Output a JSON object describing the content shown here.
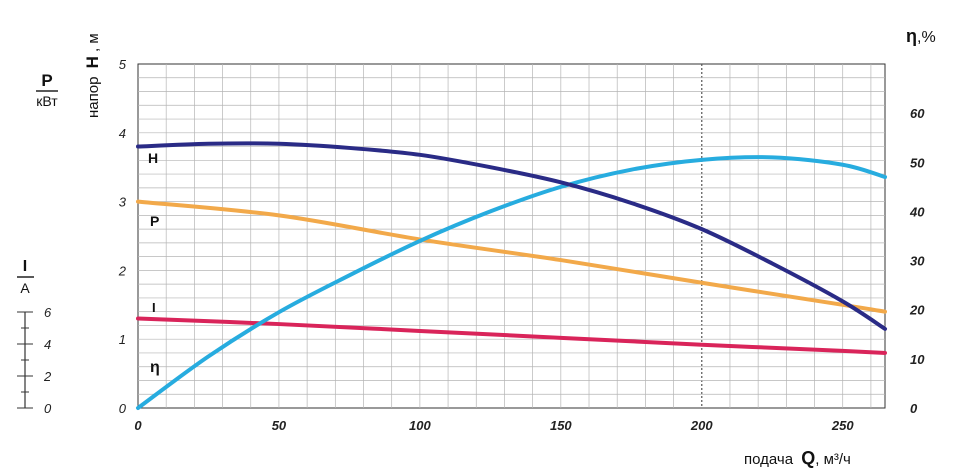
{
  "chart_data": {
    "type": "line",
    "title": "",
    "x_axis": {
      "label_prefix": "подача",
      "label_symbol": "Q",
      "label_unit": ", м³/ч",
      "range": [
        0,
        265
      ],
      "ticks": [
        "0",
        "50",
        "100",
        "150",
        "200",
        "250"
      ],
      "grid": true
    },
    "left_axis": {
      "label_prefix": "напор",
      "label_symbol": "Н",
      "label_unit": ", м",
      "range": [
        0,
        5
      ],
      "ticks": [
        "0",
        "1",
        "2",
        "3",
        "4",
        "5"
      ]
    },
    "power_axis": {
      "symbol": "P",
      "unit": "кВт"
    },
    "current_axis": {
      "symbol": "I",
      "unit": "A",
      "ticks": [
        "0",
        "2",
        "4",
        "6"
      ]
    },
    "eff_axis": {
      "symbol": "η",
      "unit": ",%",
      "range": [
        0,
        70
      ],
      "ticks": [
        "0",
        "10",
        "20",
        "30",
        "40",
        "50",
        "60"
      ]
    },
    "series": [
      {
        "name": "Н",
        "color": "#2a2b86",
        "axis": "left",
        "x": [
          0,
          25,
          50,
          75,
          100,
          125,
          150,
          175,
          200,
          225,
          250,
          265
        ],
        "y": [
          3.8,
          3.84,
          3.84,
          3.78,
          3.68,
          3.5,
          3.28,
          2.98,
          2.6,
          2.1,
          1.55,
          1.15
        ]
      },
      {
        "name": "P",
        "color": "#f2a94a",
        "axis": "left",
        "x": [
          0,
          50,
          100,
          150,
          200,
          250,
          265
        ],
        "y": [
          3.0,
          2.8,
          2.45,
          2.15,
          1.82,
          1.5,
          1.4
        ]
      },
      {
        "name": "I",
        "color": "#d9245a",
        "axis": "left",
        "x": [
          0,
          50,
          100,
          150,
          200,
          250,
          265
        ],
        "y": [
          1.3,
          1.22,
          1.12,
          1.02,
          0.92,
          0.83,
          0.8
        ]
      },
      {
        "name": "η",
        "color": "#27acdf",
        "axis": "eff",
        "x": [
          0,
          25,
          50,
          75,
          100,
          125,
          150,
          175,
          200,
          225,
          250,
          265
        ],
        "y": [
          0,
          10.5,
          19.5,
          27,
          34,
          40,
          45,
          48.5,
          50.5,
          51,
          49.5,
          47
        ]
      }
    ]
  }
}
